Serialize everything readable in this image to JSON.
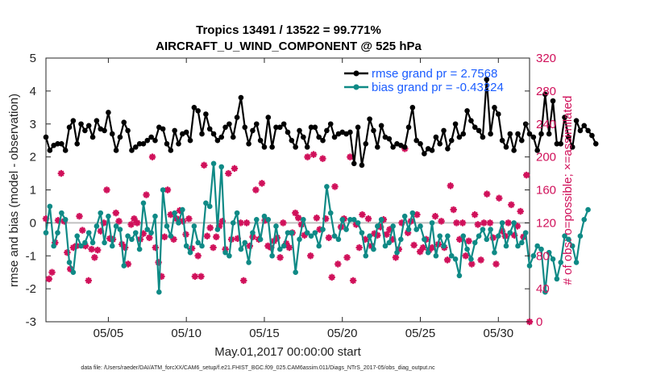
{
  "chart_data": {
    "type": "line",
    "title_line1": "Tropics 13491 / 13522 = 99.771%",
    "title_line2": "AIRCRAFT_U_WIND_COMPONENT @ 525 hPa",
    "xlabel": "May.01,2017 00:00:00 start",
    "ylabel": "rmse and bias (model - observation)",
    "ylabel_right": "# of obs: o=possible; ×=assimilated",
    "xlim": [
      1,
      32
    ],
    "ylim": [
      -3,
      5
    ],
    "ylim_right": [
      0,
      320
    ],
    "x_ticks": [
      5,
      10,
      15,
      20,
      25,
      30
    ],
    "x_tick_labels": [
      "05/05",
      "05/10",
      "05/15",
      "05/20",
      "05/25",
      "05/30"
    ],
    "y_ticks": [
      -3,
      -2,
      -1,
      0,
      1,
      2,
      3,
      4,
      5
    ],
    "y_tick_labels": [
      "-3",
      "-2",
      "-1",
      "0",
      "1",
      "2",
      "3",
      "4",
      "5"
    ],
    "y_right_ticks": [
      0,
      40,
      80,
      120,
      160,
      200,
      240,
      280,
      320
    ],
    "y_right_tick_labels": [
      "0",
      "40",
      "80",
      "120",
      "160",
      "200",
      "240",
      "280",
      "320"
    ],
    "x_start": 1.0,
    "x_step": 0.25,
    "series": [
      {
        "name": "rmse grand pr = 2.7568",
        "color": "#000000",
        "marker": "circle",
        "values": [
          2.6,
          2.2,
          2.35,
          2.4,
          2.4,
          2.2,
          2.9,
          3.1,
          2.4,
          3.0,
          2.8,
          2.95,
          2.6,
          3.1,
          2.85,
          2.8,
          3.35,
          2.7,
          2.2,
          2.6,
          3.05,
          2.8,
          2.2,
          2.3,
          2.4,
          2.4,
          2.5,
          2.6,
          2.5,
          2.9,
          2.85,
          2.4,
          2.2,
          2.8,
          2.4,
          2.7,
          2.75,
          2.5,
          3.5,
          3.4,
          2.7,
          3.3,
          2.85,
          2.7,
          2.5,
          2.6,
          2.9,
          3.0,
          2.6,
          3.2,
          3.8,
          2.9,
          2.4,
          2.8,
          3.0,
          2.5,
          2.3,
          3.2,
          2.3,
          2.9,
          2.9,
          3.0,
          2.75,
          2.5,
          2.3,
          2.8,
          2.6,
          2.3,
          2.9,
          2.9,
          2.6,
          2.5,
          2.8,
          3.0,
          2.6,
          2.7,
          2.75,
          2.7,
          2.75,
          1.8,
          2.9,
          1.75,
          2.4,
          3.15,
          2.8,
          2.3,
          2.95,
          2.6,
          2.55,
          2.3,
          2.4,
          2.35,
          2.3,
          2.9,
          3.5,
          2.5,
          2.4,
          2.1,
          2.25,
          2.2,
          2.6,
          2.4,
          2.8,
          2.25,
          2.5,
          3.0,
          2.6,
          2.7,
          3.4,
          3.1,
          2.9,
          2.8,
          2.6,
          4.35,
          2.7,
          3.5,
          3.3,
          2.5,
          2.3,
          2.7,
          2.2,
          2.7,
          2.5,
          3.0,
          2.7,
          2.6,
          2.2,
          2.7,
          3.9,
          2.7,
          3.7,
          2.4,
          2.4,
          3.2,
          2.6,
          2.3,
          3.1,
          2.8,
          2.95,
          2.8,
          2.65,
          2.4
        ]
      },
      {
        "name": "bias grand pr = -0.43224",
        "color": "#0f8a86",
        "marker": "circle",
        "values": [
          -0.3,
          0.5,
          -0.7,
          -0.3,
          0.3,
          0.1,
          -1.2,
          -1.5,
          -0.4,
          -0.7,
          -0.6,
          -0.3,
          -0.6,
          -0.1,
          0.3,
          -0.6,
          0.2,
          -0.7,
          -0.1,
          -0.2,
          -1.3,
          -0.4,
          -0.5,
          -0.3,
          -0.8,
          0.6,
          -0.2,
          -0.3,
          0.2,
          -2.1,
          1.0,
          -0.1,
          -0.4,
          0.3,
          0.0,
          0.4,
          -0.7,
          -0.9,
          -0.1,
          -0.6,
          -0.7,
          0.6,
          0.5,
          1.8,
          -0.2,
          1.7,
          -0.9,
          -1.0,
          0.0,
          0.3,
          -0.8,
          -0.6,
          -1.2,
          -0.3,
          0.1,
          -0.5,
          0.2,
          0.1,
          -1.0,
          -0.1,
          -0.8,
          -0.7,
          -0.3,
          -0.3,
          -1.5,
          -0.5,
          0.1,
          -0.3,
          -0.4,
          -0.3,
          -0.7,
          -0.2,
          1.1,
          0.3,
          -0.4,
          -0.5,
          0.1,
          -0.2,
          0.1,
          0.1,
          0.0,
          -0.3,
          -1.0,
          -0.4,
          -0.8,
          -0.1,
          0.1,
          -0.7,
          -0.6,
          -0.1,
          -0.9,
          -0.5,
          0.2,
          -0.2,
          0.3,
          -0.2,
          -0.1,
          -0.5,
          -0.9,
          0.0,
          -1.0,
          -0.4,
          -0.7,
          -0.4,
          -1.0,
          -1.1,
          -1.6,
          -0.4,
          -0.8,
          -1.1,
          -0.6,
          -0.4,
          -0.2,
          -0.5,
          -0.2,
          -0.9,
          -0.4,
          0.0,
          -0.7,
          -0.3,
          0.0,
          -0.7,
          -0.6,
          -0.3,
          -1.3,
          -1.0,
          -0.7,
          -0.8,
          -2.1,
          -0.9,
          -1.1,
          -1.7,
          -1.2,
          -0.4,
          -0.5,
          -0.7,
          -1.2,
          -0.4,
          0.1,
          0.4
        ]
      }
    ],
    "obs_counts": [
      125,
      52,
      60,
      96,
      123,
      180,
      122,
      84,
      64,
      90,
      92,
      128,
      111,
      92,
      50,
      88,
      78,
      87,
      110,
      120,
      160,
      101,
      100,
      132,
      122,
      94,
      90,
      70,
      118,
      125,
      120,
      100,
      107,
      154,
      102,
      200,
      90,
      72,
      55,
      103,
      160,
      130,
      100,
      125,
      135,
      122,
      106,
      125,
      89,
      55,
      80,
      55,
      190,
      104,
      114,
      90,
      103,
      116,
      122,
      88,
      180,
      100,
      186,
      101,
      120,
      50,
      120,
      92,
      103,
      160,
      100,
      168,
      123,
      92,
      90,
      98,
      102,
      78,
      120,
      95,
      90,
      108,
      132,
      126,
      118,
      105,
      200,
      80,
      203,
      126,
      112,
      198,
      125,
      102,
      54,
      164,
      70,
      115,
      125,
      78,
      200,
      50,
      118,
      90,
      130,
      100,
      125,
      92,
      107,
      105,
      115,
      124,
      106,
      112,
      100,
      78,
      88,
      120,
      210,
      108,
      122,
      93,
      130,
      85,
      90,
      100,
      87,
      90,
      128,
      94,
      122,
      90,
      75,
      165,
      136,
      120,
      100,
      120,
      80,
      98,
      70,
      130,
      118,
      75,
      120,
      155,
      120,
      102,
      70,
      150,
      110,
      104,
      120,
      142,
      105,
      116,
      134,
      103,
      178,
      0
    ]
  },
  "legend": {
    "rmse_label": "rmse grand pr = 2.7568",
    "bias_label": "bias grand pr = -0.43224"
  },
  "footer": "data file: /Users/raeder/DAI/ATM_forcXX/CAM6_setup/f.e21.FHIST_BGC.f09_025.CAM6assim.011/Diags_NTrS_2017-05/obs_diag_output.nc",
  "colors": {
    "rmse": "#000000",
    "bias": "#0f8a86",
    "obs": "#d0105a",
    "legend_text": "#1a5cff",
    "zero_line": "#c0c0c0"
  }
}
